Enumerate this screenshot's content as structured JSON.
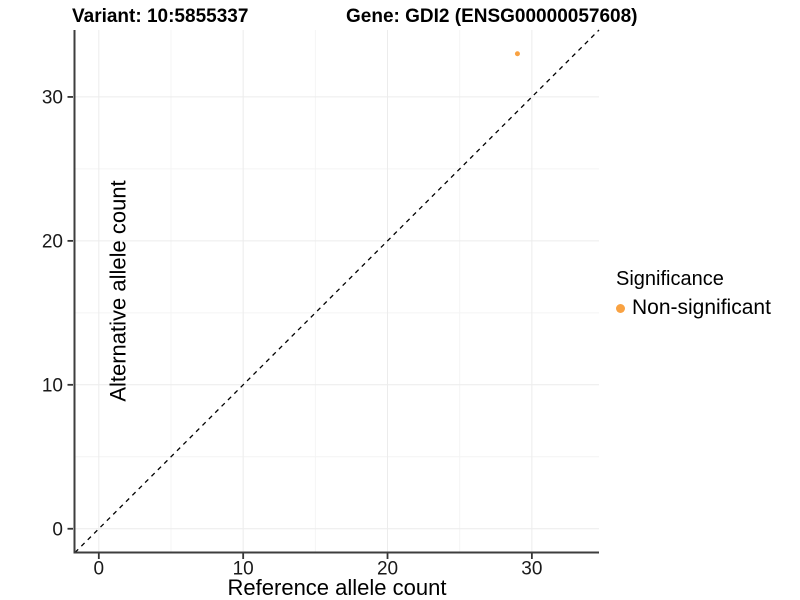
{
  "titles": {
    "variant": "Variant: 10:5855337",
    "gene": "Gene: GDI2 (ENSG00000057608)"
  },
  "chart_data": {
    "type": "scatter",
    "title_left": "Variant: 10:5855337",
    "title_right": "Gene: GDI2 (ENSG00000057608)",
    "xlabel": "Reference allele count",
    "ylabel": "Alternative allele count",
    "xlim": [
      -1.65,
      34.65
    ],
    "ylim": [
      -1.65,
      34.65
    ],
    "x_ticks": [
      0,
      10,
      20,
      30
    ],
    "y_ticks": [
      0,
      10,
      20,
      30
    ],
    "x_minor_ticks": [
      5,
      15,
      25
    ],
    "y_minor_ticks": [
      5,
      15,
      25
    ],
    "grid": true,
    "identity_line": {
      "equation": "y = x",
      "style": "dashed",
      "color": "#000000"
    },
    "series": [
      {
        "name": "Non-significant",
        "color": "#F9A242",
        "points": [
          {
            "x": 29,
            "y": 33
          }
        ]
      }
    ],
    "legend": {
      "position": "right",
      "title": "Significance",
      "items": [
        {
          "label": "Non-significant",
          "color": "#F9A242"
        }
      ]
    }
  },
  "style_colors": {
    "point": "#F9A242",
    "axis_line": "#3d3d3d",
    "tick_mark": "#333333",
    "tick_label": "#1a1a1a",
    "grid_major": "#ececec",
    "grid_minor": "#f4f4f4",
    "background": "#ffffff"
  }
}
